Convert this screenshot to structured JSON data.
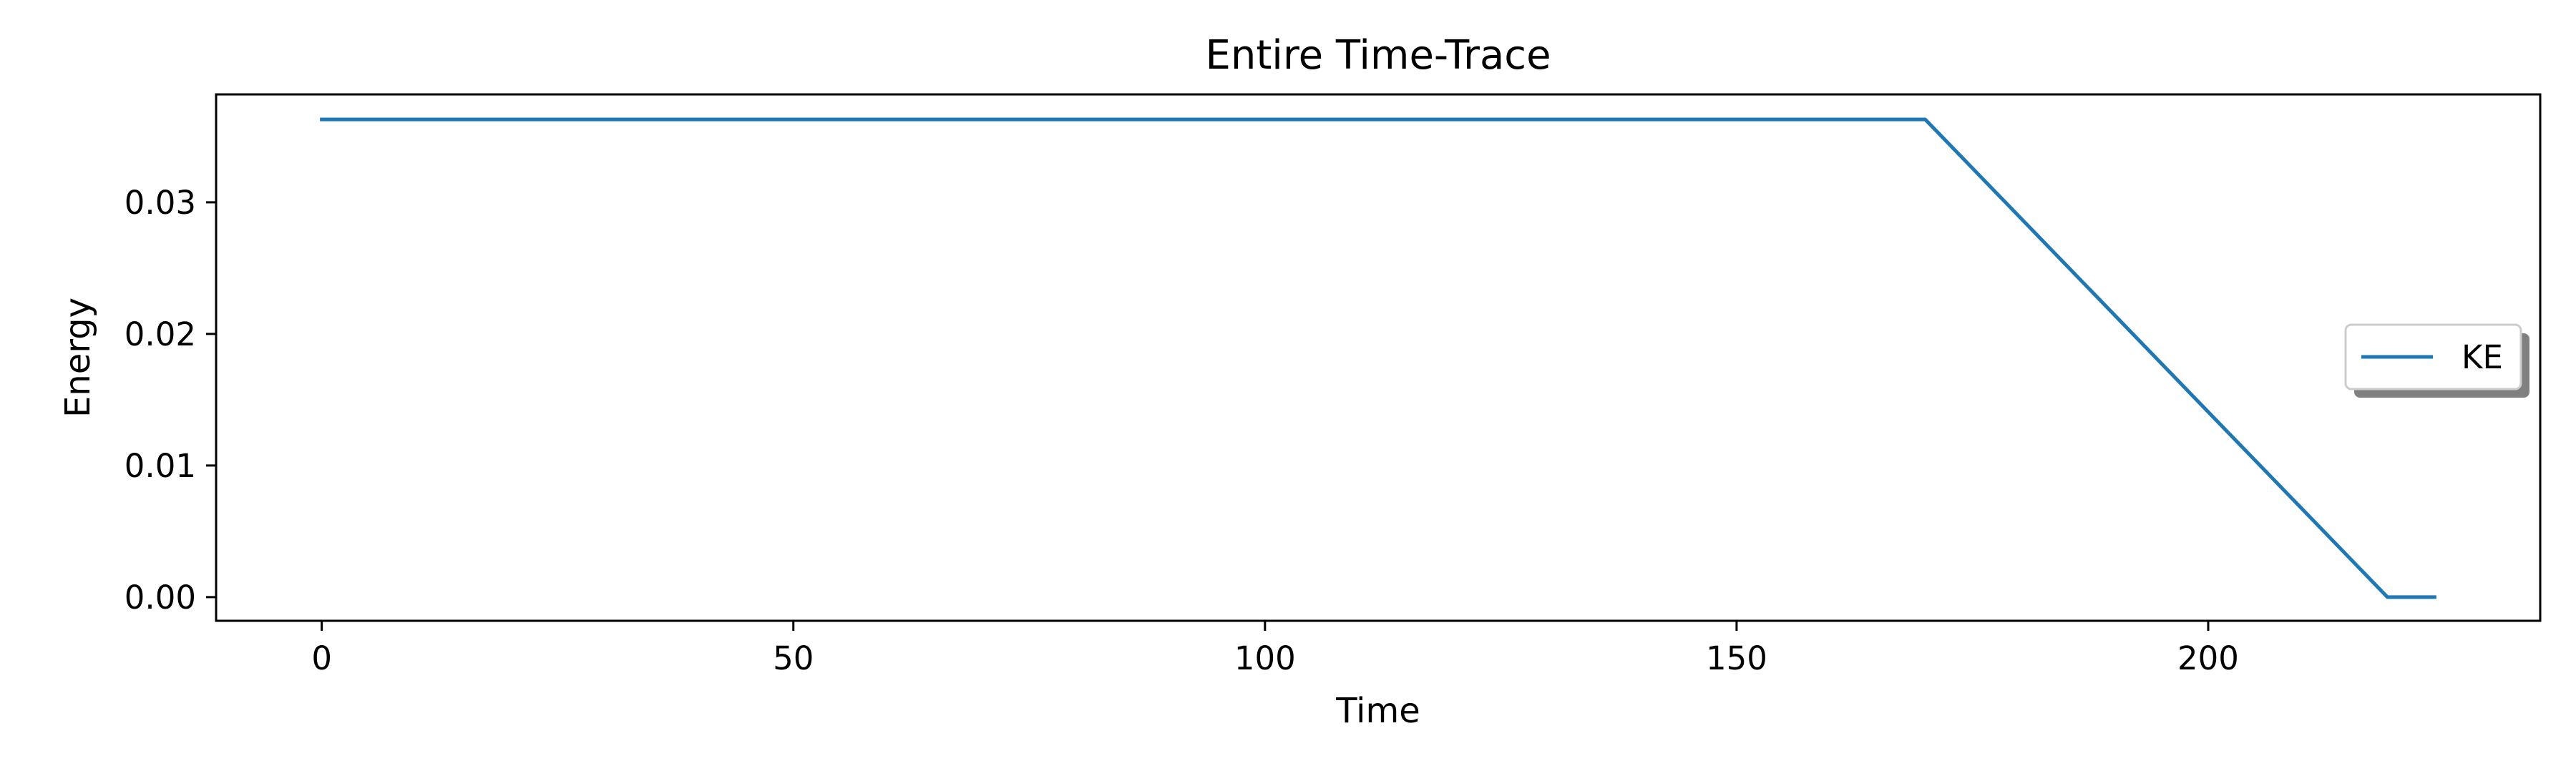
{
  "chart_data": {
    "type": "line",
    "title": "Entire Time-Trace",
    "xlabel": "Time",
    "ylabel": "Energy",
    "xlim": [
      -11.2,
      235.2
    ],
    "ylim": [
      -0.0018,
      0.0382
    ],
    "xticks": [
      0,
      50,
      100,
      150,
      200
    ],
    "xtick_labels": [
      "0",
      "50",
      "100",
      "150",
      "200"
    ],
    "yticks": [
      0.0,
      0.01,
      0.02,
      0.03
    ],
    "ytick_labels": [
      "0.00",
      "0.01",
      "0.02",
      "0.03"
    ],
    "grid": false,
    "legend_position": "center-right",
    "series": [
      {
        "name": "KE",
        "color": "#1f77b4",
        "x": [
          0,
          50,
          100,
          150,
          170,
          219,
          224
        ],
        "y": [
          0.0363,
          0.0363,
          0.0363,
          0.0363,
          0.0363,
          0.0,
          0.0
        ]
      }
    ]
  }
}
